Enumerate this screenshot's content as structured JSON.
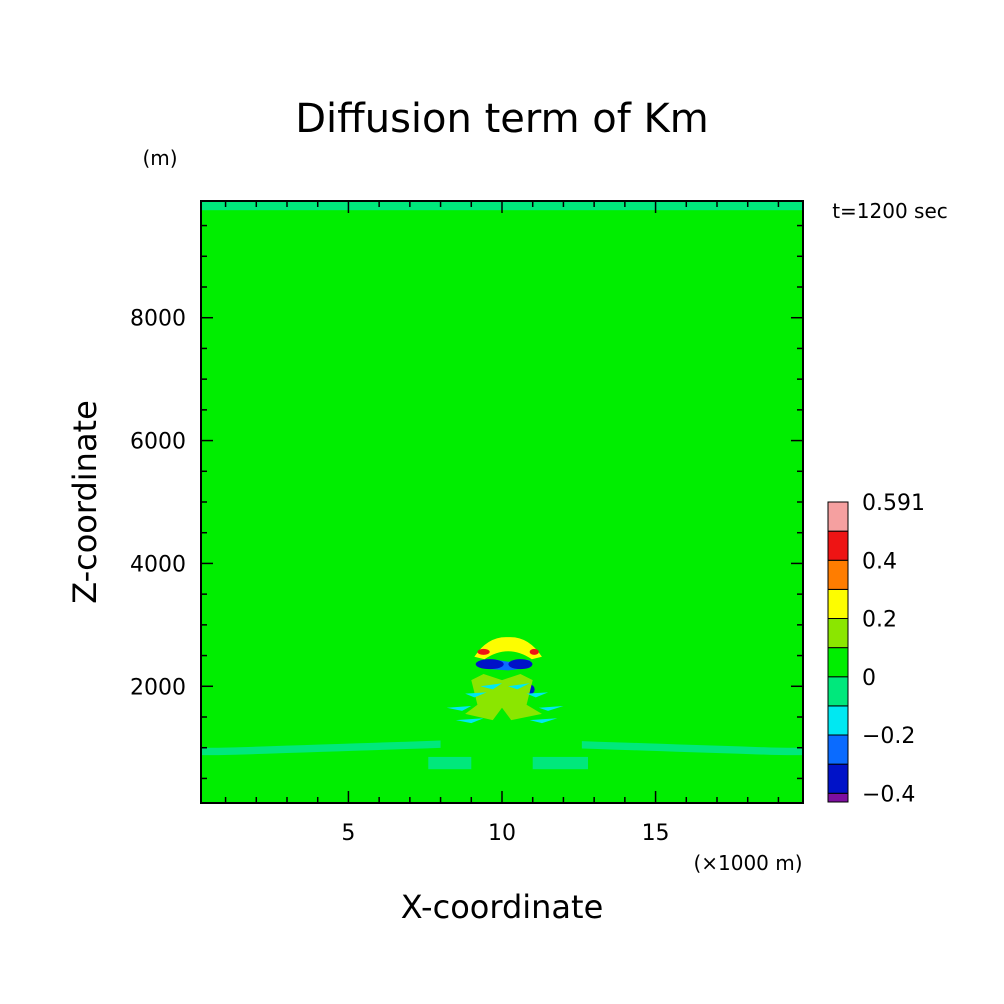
{
  "chart_data": {
    "type": "heatmap",
    "title": "Diffusion term of Km",
    "xlabel": "X-coordinate",
    "ylabel": "Z-coordinate",
    "x_unit": "(×1000 m)",
    "y_unit": "(m)",
    "time_label": "t=1200 sec",
    "xlim": [
      0.2,
      19.8
    ],
    "ylim": [
      100,
      9900
    ],
    "x_ticks": [
      "5",
      "10",
      "15"
    ],
    "y_ticks": [
      "2000",
      "4000",
      "6000",
      "8000"
    ],
    "x_tick_values": [
      5,
      10,
      15
    ],
    "y_tick_values": [
      2000,
      4000,
      6000,
      8000
    ],
    "background_level": "0",
    "colorbar": {
      "labels": [
        "0.591",
        "0.4",
        "0.2",
        "0",
        "−0.2",
        "−0.4"
      ],
      "levels": [
        {
          "lower": -0.45,
          "upper": -0.4,
          "color": "#7d0fa0"
        },
        {
          "lower": -0.4,
          "upper": -0.3,
          "color": "#0012c8"
        },
        {
          "lower": -0.3,
          "upper": -0.2,
          "color": "#0a6bff"
        },
        {
          "lower": -0.2,
          "upper": -0.1,
          "color": "#00e8f2"
        },
        {
          "lower": -0.1,
          "upper": 0.0,
          "color": "#00e87c"
        },
        {
          "lower": 0.0,
          "upper": 0.1,
          "color": "#00ee00"
        },
        {
          "lower": 0.1,
          "upper": 0.2,
          "color": "#8be600"
        },
        {
          "lower": 0.2,
          "upper": 0.3,
          "color": "#fdfd00"
        },
        {
          "lower": 0.3,
          "upper": 0.4,
          "color": "#ff7d00"
        },
        {
          "lower": 0.4,
          "upper": 0.5,
          "color": "#ee1414"
        },
        {
          "lower": 0.5,
          "upper": 0.591,
          "color": "#f5a0a0"
        }
      ]
    },
    "features": [
      {
        "level": -0.05,
        "desc": "top boundary band",
        "x": [
          0.2,
          19.8
        ],
        "z": [
          9750,
          9900
        ]
      },
      {
        "level": -0.05,
        "desc": "horizontal band left",
        "x": [
          0.2,
          8.0
        ],
        "z": [
          900,
          1200
        ]
      },
      {
        "level": -0.05,
        "desc": "horizontal band right",
        "x": [
          12.6,
          19.8
        ],
        "z": [
          900,
          1200
        ]
      },
      {
        "level": -0.05,
        "desc": "low lobe left",
        "x": [
          7.6,
          9.0
        ],
        "z": [
          650,
          850
        ]
      },
      {
        "level": -0.05,
        "desc": "low lobe right",
        "x": [
          11.0,
          12.8
        ],
        "z": [
          650,
          850
        ]
      },
      {
        "level": 0.25,
        "desc": "arc cap",
        "x": [
          9.0,
          11.2
        ],
        "z": [
          2450,
          2800
        ]
      },
      {
        "level": 0.45,
        "desc": "arc peak left",
        "x": [
          9.2,
          9.6
        ],
        "z": [
          2520,
          2600
        ]
      },
      {
        "level": 0.45,
        "desc": "arc peak right",
        "x": [
          10.9,
          11.2
        ],
        "z": [
          2520,
          2600
        ]
      },
      {
        "level": -0.25,
        "desc": "inner band",
        "x": [
          9.2,
          10.9
        ],
        "z": [
          2250,
          2450
        ]
      },
      {
        "level": -0.35,
        "desc": "core min",
        "x": [
          9.3,
          10.6
        ],
        "z": [
          2300,
          2400
        ]
      },
      {
        "level": 0.15,
        "desc": "lobes",
        "x": [
          9.0,
          11.0
        ],
        "z": [
          1400,
          2200
        ]
      },
      {
        "level": -0.15,
        "desc": "side lobes",
        "x": [
          8.2,
          11.9
        ],
        "z": [
          1200,
          2000
        ]
      }
    ]
  }
}
